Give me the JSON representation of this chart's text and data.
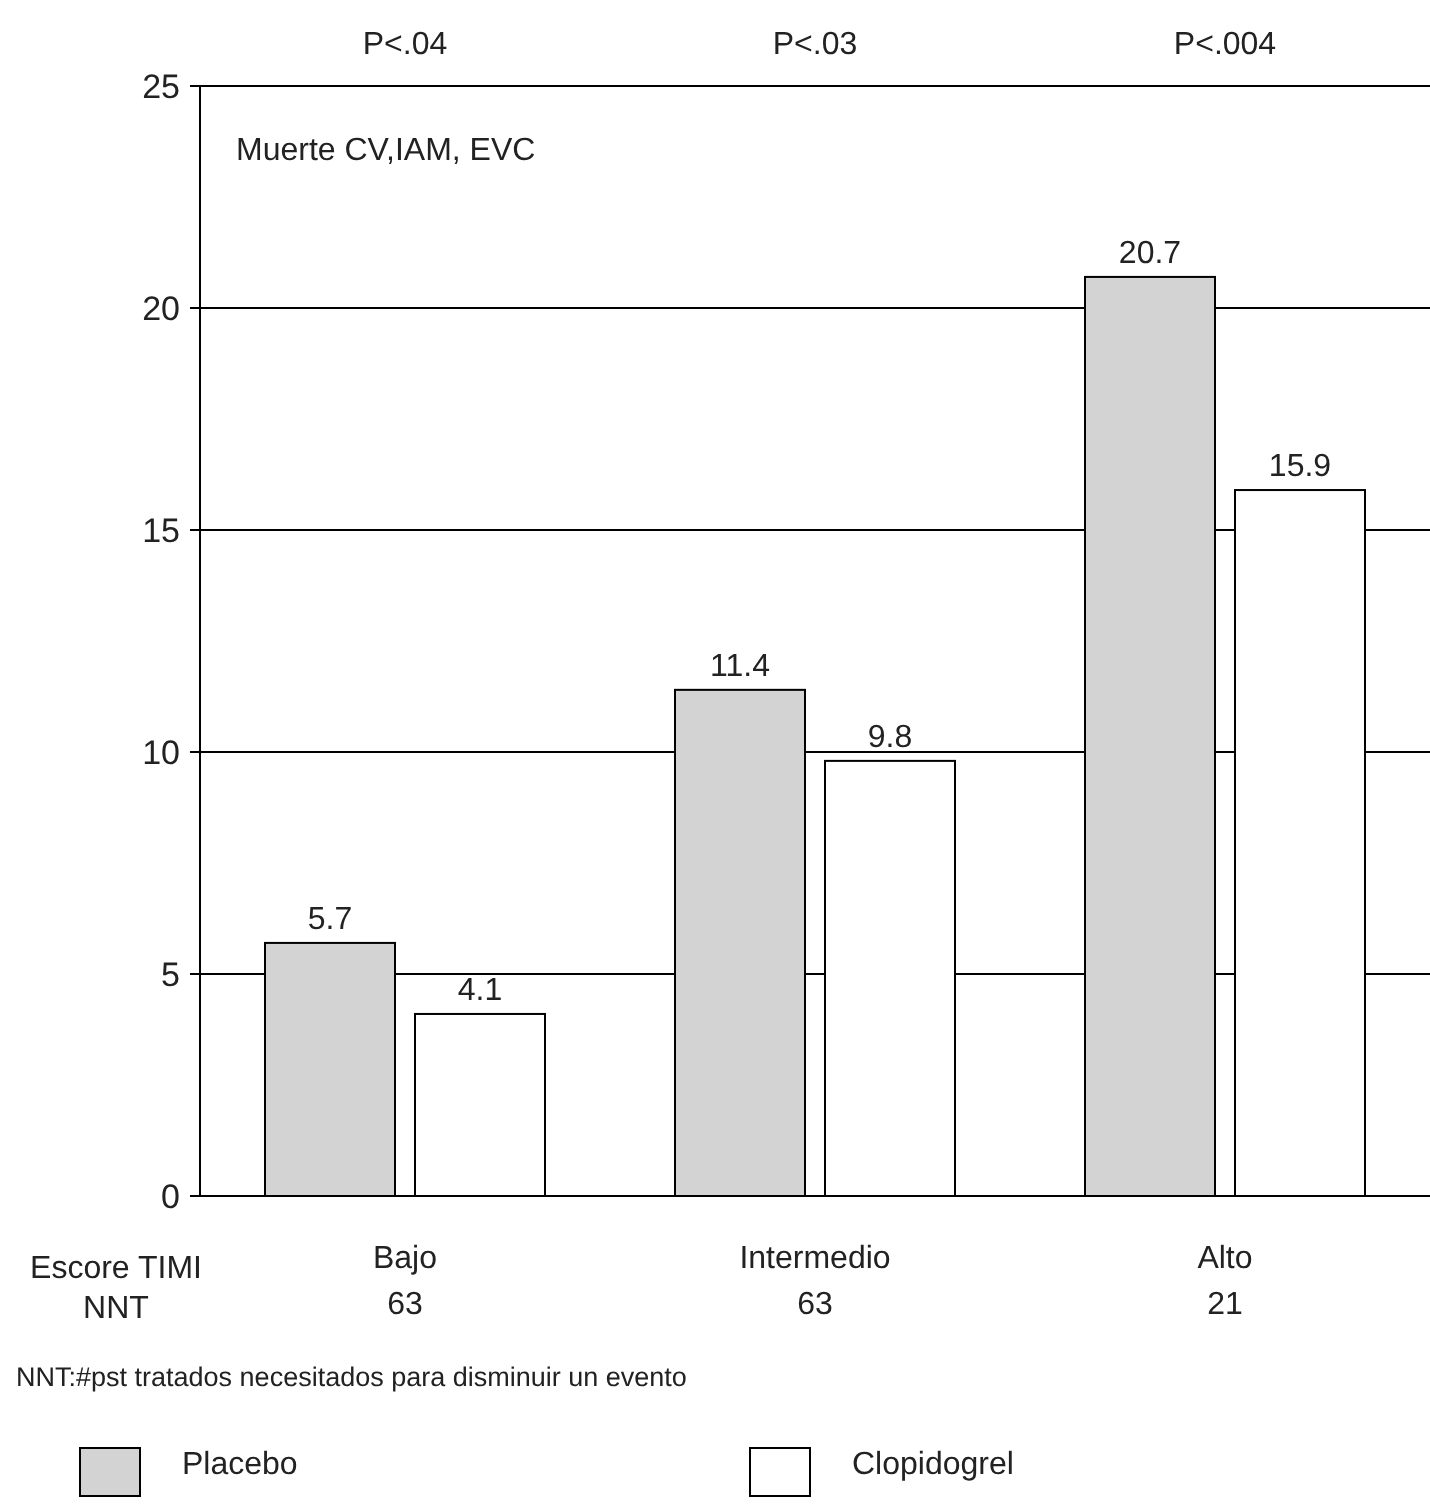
{
  "chart_data": {
    "type": "bar",
    "categories": [
      "Bajo",
      "Intermedio",
      "Alto"
    ],
    "series": [
      {
        "name": "Placebo",
        "color": "#d3d3d3",
        "values": [
          5.7,
          11.4,
          20.7
        ]
      },
      {
        "name": "Clopidogrel",
        "color": "#ffffff",
        "values": [
          4.1,
          9.8,
          15.9
        ]
      }
    ],
    "ylim": [
      0,
      25
    ],
    "yticks": [
      0,
      5,
      10,
      15,
      20,
      25
    ],
    "grid": "y",
    "data_labels": true,
    "legend": "bottom",
    "xlabel": "Escore TIMI",
    "annotations": [
      "Muerte CV,IAM, EVC",
      "NNT",
      "NNT:#pst tratados necesitados para disminuir un evento",
      "P<.04",
      "P<.03",
      "P<.004",
      "63",
      "63",
      "21"
    ]
  }
}
